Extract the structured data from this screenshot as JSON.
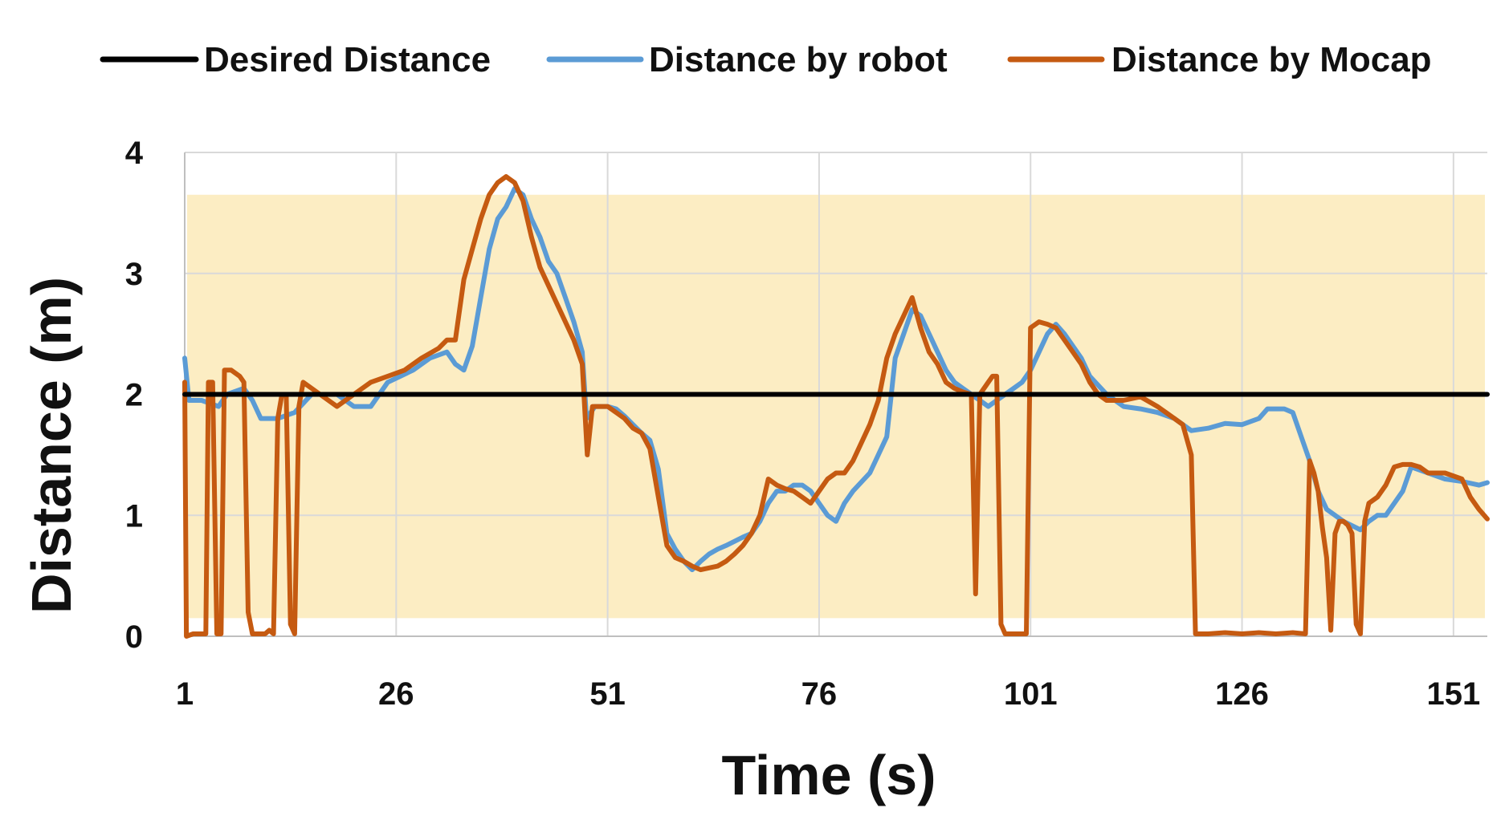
{
  "chart_data": {
    "type": "line",
    "title": "",
    "xlabel": "Time (s)",
    "ylabel": "Distance (m)",
    "xlim": [
      1,
      155
    ],
    "ylim": [
      0,
      4
    ],
    "x_ticks": [
      1,
      26,
      51,
      76,
      101,
      126,
      151
    ],
    "x_tick_labels": [
      "1",
      "26",
      "51",
      "76",
      "101",
      "126",
      "151"
    ],
    "y_ticks": [
      0,
      1,
      2,
      3,
      4
    ],
    "y_tick_labels": [
      "0",
      "1",
      "2",
      "3",
      "4"
    ],
    "grid": true,
    "legend": "top",
    "band": {
      "y_from": 0.15,
      "y_to": 3.65,
      "color": "#fcedc3"
    },
    "series": [
      {
        "name": "Desired Distance",
        "color": "#000000",
        "points": [
          [
            1,
            2
          ],
          [
            155,
            2
          ]
        ]
      },
      {
        "name": "Distance by robot",
        "color": "#5b9bd5",
        "points": [
          [
            1,
            2.3
          ],
          [
            1.5,
            1.95
          ],
          [
            3,
            1.95
          ],
          [
            5,
            1.9
          ],
          [
            6,
            2.0
          ],
          [
            8,
            2.05
          ],
          [
            9,
            1.95
          ],
          [
            10,
            1.8
          ],
          [
            12,
            1.8
          ],
          [
            14,
            1.85
          ],
          [
            16,
            2.0
          ],
          [
            19,
            2.0
          ],
          [
            21,
            1.9
          ],
          [
            23,
            1.9
          ],
          [
            25,
            2.1
          ],
          [
            28,
            2.2
          ],
          [
            30,
            2.3
          ],
          [
            32,
            2.35
          ],
          [
            33,
            2.25
          ],
          [
            34,
            2.2
          ],
          [
            35,
            2.4
          ],
          [
            36,
            2.8
          ],
          [
            37,
            3.2
          ],
          [
            38,
            3.45
          ],
          [
            39,
            3.55
          ],
          [
            40,
            3.7
          ],
          [
            41,
            3.65
          ],
          [
            42,
            3.45
          ],
          [
            43,
            3.3
          ],
          [
            44,
            3.1
          ],
          [
            45,
            3.0
          ],
          [
            46,
            2.8
          ],
          [
            47,
            2.6
          ],
          [
            48,
            2.35
          ],
          [
            48.5,
            1.8
          ],
          [
            49.5,
            1.9
          ],
          [
            50,
            1.9
          ],
          [
            51,
            1.9
          ],
          [
            52,
            1.88
          ],
          [
            53,
            1.82
          ],
          [
            54,
            1.75
          ],
          [
            55,
            1.68
          ],
          [
            56,
            1.62
          ],
          [
            57,
            1.38
          ],
          [
            58,
            0.85
          ],
          [
            59,
            0.72
          ],
          [
            60,
            0.62
          ],
          [
            61,
            0.55
          ],
          [
            62,
            0.62
          ],
          [
            63,
            0.68
          ],
          [
            64,
            0.72
          ],
          [
            65,
            0.75
          ],
          [
            67,
            0.82
          ],
          [
            68,
            0.85
          ],
          [
            69,
            0.95
          ],
          [
            70,
            1.1
          ],
          [
            71,
            1.2
          ],
          [
            72,
            1.2
          ],
          [
            73,
            1.25
          ],
          [
            74,
            1.25
          ],
          [
            75,
            1.2
          ],
          [
            76,
            1.1
          ],
          [
            77,
            1.0
          ],
          [
            78,
            0.95
          ],
          [
            79,
            1.1
          ],
          [
            80,
            1.2
          ],
          [
            82,
            1.35
          ],
          [
            83,
            1.5
          ],
          [
            84,
            1.65
          ],
          [
            85,
            2.3
          ],
          [
            86,
            2.5
          ],
          [
            87,
            2.7
          ],
          [
            88,
            2.65
          ],
          [
            89,
            2.5
          ],
          [
            90,
            2.35
          ],
          [
            91,
            2.2
          ],
          [
            92,
            2.1
          ],
          [
            93,
            2.05
          ],
          [
            94,
            2.0
          ],
          [
            95,
            1.95
          ],
          [
            96,
            1.9
          ],
          [
            97,
            1.95
          ],
          [
            98,
            2.0
          ],
          [
            99,
            2.05
          ],
          [
            100,
            2.1
          ],
          [
            101,
            2.2
          ],
          [
            102,
            2.35
          ],
          [
            103,
            2.5
          ],
          [
            104,
            2.58
          ],
          [
            105,
            2.5
          ],
          [
            106,
            2.4
          ],
          [
            107,
            2.3
          ],
          [
            108,
            2.15
          ],
          [
            110,
            2.0
          ],
          [
            112,
            1.9
          ],
          [
            114,
            1.88
          ],
          [
            116,
            1.85
          ],
          [
            118,
            1.8
          ],
          [
            120,
            1.7
          ],
          [
            122,
            1.72
          ],
          [
            124,
            1.76
          ],
          [
            126,
            1.75
          ],
          [
            128,
            1.8
          ],
          [
            129,
            1.88
          ],
          [
            131,
            1.88
          ],
          [
            132,
            1.85
          ],
          [
            133,
            1.65
          ],
          [
            134,
            1.45
          ],
          [
            135,
            1.2
          ],
          [
            136,
            1.05
          ],
          [
            138,
            0.95
          ],
          [
            140,
            0.88
          ],
          [
            141,
            0.95
          ],
          [
            142,
            1.0
          ],
          [
            143,
            1.0
          ],
          [
            145,
            1.2
          ],
          [
            146,
            1.4
          ],
          [
            148,
            1.35
          ],
          [
            150,
            1.3
          ],
          [
            152,
            1.28
          ],
          [
            154,
            1.25
          ],
          [
            155,
            1.27
          ]
        ]
      },
      {
        "name": "Distance by Mocap",
        "color": "#c55a11",
        "points": [
          [
            1,
            2.1
          ],
          [
            1.2,
            0.0
          ],
          [
            2,
            0.02
          ],
          [
            3.5,
            0.02
          ],
          [
            3.8,
            2.1
          ],
          [
            4.3,
            2.1
          ],
          [
            4.8,
            0.02
          ],
          [
            5.3,
            0.02
          ],
          [
            5.7,
            2.2
          ],
          [
            6.5,
            2.2
          ],
          [
            7.5,
            2.15
          ],
          [
            8,
            2.1
          ],
          [
            8.5,
            0.2
          ],
          [
            9,
            0.02
          ],
          [
            10.5,
            0.02
          ],
          [
            11,
            0.05
          ],
          [
            11.5,
            0.02
          ],
          [
            12,
            1.8
          ],
          [
            12.5,
            2.0
          ],
          [
            13,
            2.0
          ],
          [
            13.5,
            0.1
          ],
          [
            14,
            0.02
          ],
          [
            14.5,
            1.9
          ],
          [
            15,
            2.1
          ],
          [
            17,
            2.0
          ],
          [
            19,
            1.9
          ],
          [
            21,
            2.0
          ],
          [
            23,
            2.1
          ],
          [
            25,
            2.15
          ],
          [
            27,
            2.2
          ],
          [
            29,
            2.3
          ],
          [
            31,
            2.38
          ],
          [
            32,
            2.45
          ],
          [
            33,
            2.45
          ],
          [
            34,
            2.95
          ],
          [
            35,
            3.2
          ],
          [
            36,
            3.45
          ],
          [
            37,
            3.65
          ],
          [
            38,
            3.75
          ],
          [
            39,
            3.8
          ],
          [
            40,
            3.75
          ],
          [
            41,
            3.6
          ],
          [
            42,
            3.3
          ],
          [
            43,
            3.05
          ],
          [
            44,
            2.9
          ],
          [
            45,
            2.75
          ],
          [
            46,
            2.6
          ],
          [
            47,
            2.45
          ],
          [
            48,
            2.25
          ],
          [
            48.6,
            1.5
          ],
          [
            49.2,
            1.9
          ],
          [
            51,
            1.9
          ],
          [
            52,
            1.85
          ],
          [
            53,
            1.8
          ],
          [
            54,
            1.72
          ],
          [
            55,
            1.68
          ],
          [
            56,
            1.55
          ],
          [
            57,
            1.15
          ],
          [
            58,
            0.75
          ],
          [
            59,
            0.65
          ],
          [
            60,
            0.62
          ],
          [
            61,
            0.58
          ],
          [
            62,
            0.55
          ],
          [
            64,
            0.58
          ],
          [
            65,
            0.62
          ],
          [
            66,
            0.68
          ],
          [
            67,
            0.75
          ],
          [
            68,
            0.85
          ],
          [
            69,
            1.0
          ],
          [
            70,
            1.3
          ],
          [
            71,
            1.25
          ],
          [
            72,
            1.22
          ],
          [
            73,
            1.2
          ],
          [
            74,
            1.15
          ],
          [
            75,
            1.1
          ],
          [
            76,
            1.2
          ],
          [
            77,
            1.3
          ],
          [
            78,
            1.35
          ],
          [
            79,
            1.35
          ],
          [
            80,
            1.45
          ],
          [
            81,
            1.6
          ],
          [
            82,
            1.75
          ],
          [
            83,
            1.95
          ],
          [
            84,
            2.3
          ],
          [
            85,
            2.5
          ],
          [
            86,
            2.65
          ],
          [
            87,
            2.8
          ],
          [
            88,
            2.55
          ],
          [
            89,
            2.35
          ],
          [
            90,
            2.25
          ],
          [
            91,
            2.1
          ],
          [
            92,
            2.05
          ],
          [
            93,
            2.02
          ],
          [
            94,
            2.0
          ],
          [
            94.5,
            0.35
          ],
          [
            95,
            2.0
          ],
          [
            96,
            2.1
          ],
          [
            96.5,
            2.15
          ],
          [
            97,
            2.15
          ],
          [
            97.5,
            0.1
          ],
          [
            98,
            0.02
          ],
          [
            100,
            0.02
          ],
          [
            100.5,
            0.02
          ],
          [
            101,
            2.55
          ],
          [
            102,
            2.6
          ],
          [
            103,
            2.58
          ],
          [
            104,
            2.55
          ],
          [
            105,
            2.45
          ],
          [
            106,
            2.35
          ],
          [
            107,
            2.25
          ],
          [
            108,
            2.1
          ],
          [
            109,
            2.0
          ],
          [
            110,
            1.95
          ],
          [
            112,
            1.95
          ],
          [
            114,
            1.98
          ],
          [
            116,
            1.9
          ],
          [
            117,
            1.85
          ],
          [
            118,
            1.8
          ],
          [
            119,
            1.75
          ],
          [
            120,
            1.5
          ],
          [
            120.5,
            0.02
          ],
          [
            122,
            0.02
          ],
          [
            124,
            0.03
          ],
          [
            126,
            0.02
          ],
          [
            128,
            0.03
          ],
          [
            130,
            0.02
          ],
          [
            132,
            0.03
          ],
          [
            133.5,
            0.02
          ],
          [
            134,
            1.45
          ],
          [
            134.5,
            1.35
          ],
          [
            135,
            1.2
          ],
          [
            135.5,
            0.9
          ],
          [
            136,
            0.65
          ],
          [
            136.5,
            0.05
          ],
          [
            137,
            0.85
          ],
          [
            137.5,
            0.95
          ],
          [
            138,
            0.95
          ],
          [
            138.5,
            0.92
          ],
          [
            139,
            0.85
          ],
          [
            139.5,
            0.1
          ],
          [
            140,
            0.02
          ],
          [
            140.5,
            0.95
          ],
          [
            141,
            1.1
          ],
          [
            142,
            1.15
          ],
          [
            143,
            1.25
          ],
          [
            144,
            1.4
          ],
          [
            145,
            1.42
          ],
          [
            146,
            1.42
          ],
          [
            147,
            1.4
          ],
          [
            148,
            1.35
          ],
          [
            150,
            1.35
          ],
          [
            152,
            1.3
          ],
          [
            153,
            1.15
          ],
          [
            154,
            1.05
          ],
          [
            155,
            0.97
          ]
        ]
      }
    ]
  }
}
